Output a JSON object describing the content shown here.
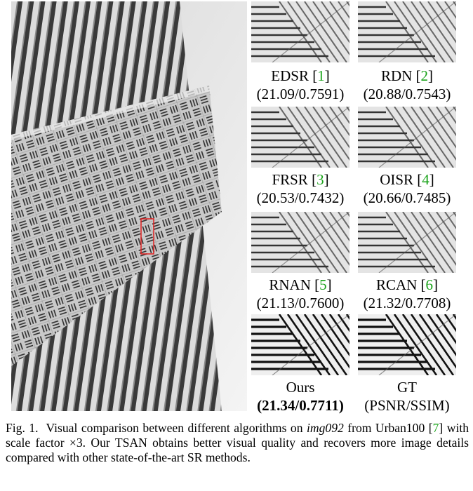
{
  "main_image": {
    "description_icon": "building-facade-photo",
    "highlight_color": "#e02020"
  },
  "patches": [
    {
      "method": "EDSR",
      "ref": "1",
      "score": "(21.09/0.7591)",
      "bold": false
    },
    {
      "method": "RDN",
      "ref": "2",
      "score": "(20.88/0.7543)",
      "bold": false
    },
    {
      "method": "FRSR",
      "ref": "3",
      "score": "(20.53/0.7432)",
      "bold": false
    },
    {
      "method": "OISR",
      "ref": "4",
      "score": "(20.66/0.7485)",
      "bold": false
    },
    {
      "method": "RNAN",
      "ref": "5",
      "score": "(21.13/0.7600)",
      "bold": false
    },
    {
      "method": "RCAN",
      "ref": "6",
      "score": "(21.32/0.7708)",
      "bold": false
    },
    {
      "method": "Ours",
      "ref": "",
      "score": "(21.34/0.7711)",
      "bold": true
    },
    {
      "method": "GT",
      "ref": "",
      "score": "(PSNR/SSIM)",
      "bold": false
    }
  ],
  "caption": {
    "label": "Fig. 1.",
    "text_1": "Visual comparison between different algorithms on ",
    "image_name": "img092",
    "text_2": " from Urban100 [",
    "ref": "7",
    "text_3": "] with scale factor ×3. Our TSAN obtains better visual quality and recovers more image details compared with other state-of-the-art SR methods."
  },
  "colors": {
    "ref_green": "#1aa31a",
    "highlight_red": "#e02020"
  }
}
